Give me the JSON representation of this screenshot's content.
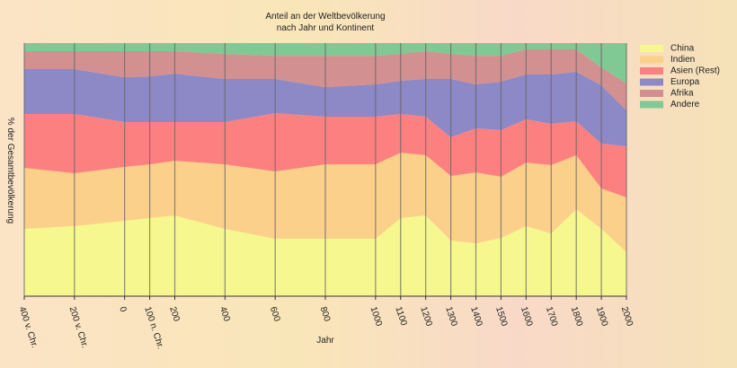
{
  "chart_data": {
    "type": "stacked-area",
    "title": "Anteil an der Weltbevölkerung",
    "subtitle": "nach Jahr und Kontinent",
    "x_label": "Jahr",
    "y_label": "% der Gesamtbevölkerung",
    "x": [
      -400,
      -200,
      0,
      100,
      200,
      400,
      600,
      800,
      1000,
      1100,
      1200,
      1300,
      1400,
      1500,
      1600,
      1700,
      1800,
      1900,
      2000
    ],
    "series": [
      {
        "name": "China",
        "color": "#f7f78f",
        "values": [
          26.6,
          27.7,
          29.8,
          30.9,
          31.9,
          26.6,
          22.7,
          22.7,
          22.7,
          30.9,
          31.9,
          22.0,
          20.9,
          23.0,
          27.7,
          24.8,
          34.4,
          26.6,
          17.4
        ]
      },
      {
        "name": "Indien",
        "color": "#fbd08a",
        "values": [
          24.1,
          20.9,
          21.3,
          21.2,
          21.6,
          25.5,
          26.6,
          29.4,
          29.4,
          25.8,
          23.8,
          25.5,
          28.0,
          24.2,
          25.1,
          27.0,
          21.3,
          16.0,
          21.6
        ]
      },
      {
        "name": "Asien (Rest)",
        "color": "#fd8080",
        "values": [
          21.3,
          23.4,
          17.7,
          16.7,
          15.3,
          16.7,
          23.0,
          18.8,
          18.8,
          15.3,
          15.2,
          15.3,
          17.4,
          18.4,
          17.1,
          16.3,
          13.4,
          17.7,
          20.2
        ]
      },
      {
        "name": "Europa",
        "color": "#8d88c6",
        "values": [
          17.7,
          17.7,
          17.7,
          18.1,
          19.1,
          17.0,
          13.5,
          11.7,
          12.8,
          13.1,
          14.9,
          23.0,
          17.4,
          19.2,
          17.7,
          19.5,
          19.6,
          23.0,
          14.2
        ]
      },
      {
        "name": "Afrika",
        "color": "#d39090",
        "values": [
          7.1,
          7.1,
          10.3,
          9.9,
          8.9,
          9.9,
          9.2,
          12.4,
          11.3,
          10.6,
          11.0,
          9.9,
          11.3,
          10.2,
          9.9,
          9.9,
          8.8,
          7.1,
          10.6
        ]
      },
      {
        "name": "Andere",
        "color": "#80c894",
        "values": [
          3.2,
          3.2,
          3.2,
          3.2,
          3.2,
          4.3,
          5.0,
          5.0,
          5.0,
          4.3,
          3.2,
          4.3,
          5.0,
          5.0,
          2.5,
          2.5,
          2.5,
          9.6,
          16.0
        ]
      }
    ],
    "xlim": [
      -400,
      2000
    ],
    "ylim": [
      0,
      100
    ],
    "xticks": [
      {
        "value": -400,
        "label": "400 v. Chr."
      },
      {
        "value": -200,
        "label": "200 v. Chr."
      },
      0,
      {
        "value": 100,
        "label": "100 n. Chr."
      },
      200,
      400,
      600,
      800,
      1000,
      1100,
      1200,
      1300,
      1400,
      1500,
      1600,
      1700,
      1800,
      1900,
      2000
    ],
    "grid": true,
    "legend": "right"
  }
}
